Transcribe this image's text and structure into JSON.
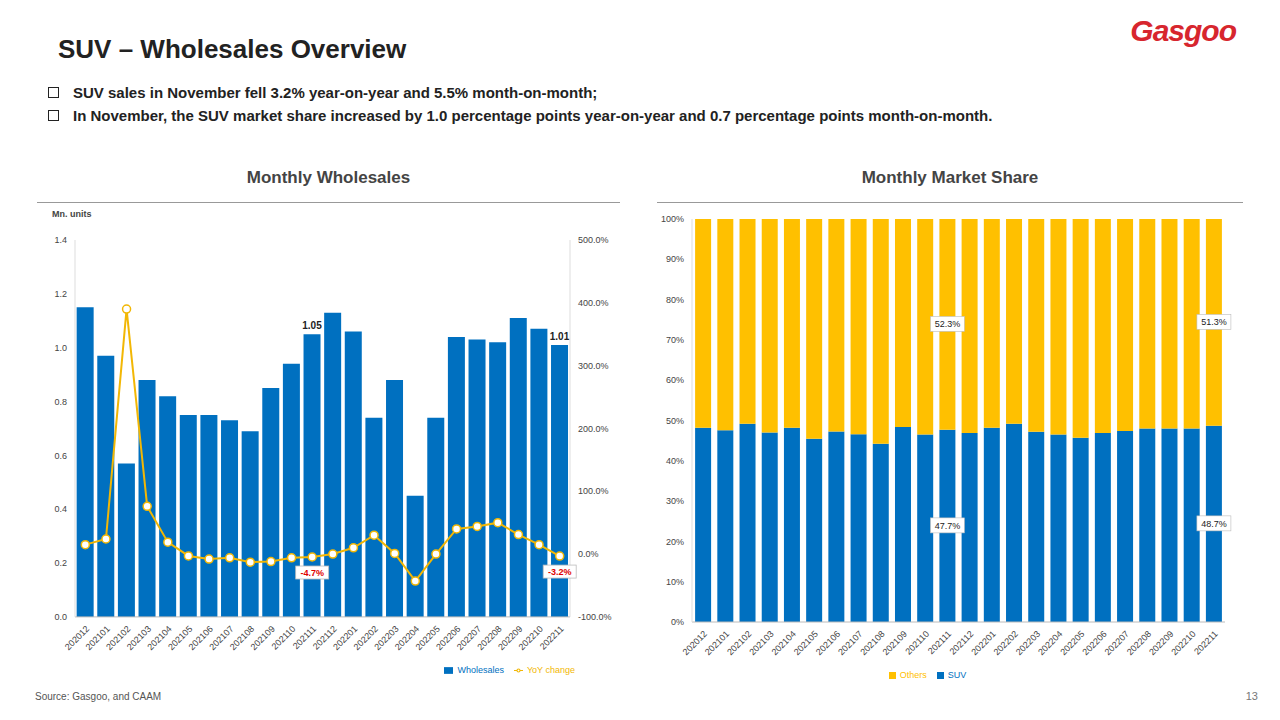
{
  "title": "SUV – Wholesales Overview",
  "bullets": [
    "SUV sales in November fell 3.2% year-on-year and 5.5% month-on-month;",
    "In November, the SUV market share increased by 1.0 percentage points year-on-year and 0.7 percentage points month-on-month."
  ],
  "source": "Source: Gasgoo, and CAAM",
  "page": 13,
  "logo": "Gasgoo",
  "chart_data": [
    {
      "type": "bar",
      "title": "Monthly Wholesales",
      "y_axis_label": "Mn. units",
      "categories": [
        "202012",
        "202101",
        "202102",
        "202103",
        "202104",
        "202105",
        "202106",
        "202107",
        "202108",
        "202109",
        "202110",
        "202111",
        "202112",
        "202201",
        "202202",
        "202203",
        "202204",
        "202205",
        "202206",
        "202207",
        "202208",
        "202209",
        "202210",
        "202211"
      ],
      "series": [
        {
          "name": "Wholesales",
          "type": "bar",
          "color": "#0070c0",
          "values": [
            1.15,
            0.97,
            0.57,
            0.88,
            0.82,
            0.75,
            0.75,
            0.73,
            0.69,
            0.85,
            0.94,
            1.05,
            1.13,
            1.06,
            0.74,
            0.88,
            0.45,
            0.74,
            1.04,
            1.03,
            1.02,
            1.11,
            1.07,
            1.01
          ],
          "value_labels": [
            null,
            null,
            null,
            null,
            null,
            null,
            null,
            null,
            null,
            null,
            null,
            "1.05",
            null,
            null,
            null,
            null,
            null,
            null,
            null,
            null,
            null,
            null,
            null,
            "1.01"
          ]
        },
        {
          "name": "YoY change",
          "type": "line",
          "axis": "y2",
          "color": "#f2b705",
          "marker": "circle",
          "values": [
            15,
            24,
            390,
            76,
            19,
            -3,
            -8,
            -6,
            -13,
            -12,
            -6,
            -4.7,
            0,
            10,
            30,
            1,
            -43,
            0,
            40,
            44,
            50,
            31,
            15,
            -3.2
          ],
          "value_labels": [
            null,
            null,
            null,
            null,
            null,
            null,
            null,
            null,
            null,
            null,
            null,
            "-4.7%",
            null,
            null,
            null,
            null,
            null,
            null,
            null,
            null,
            null,
            null,
            null,
            "-3.2%"
          ]
        }
      ],
      "ylim": [
        0,
        1.4
      ],
      "yticks": [
        {
          "value": 0,
          "label": "0.0"
        },
        0.2,
        0.4,
        0.6,
        0.8,
        {
          "value": 1,
          "label": "1.0"
        },
        1.2,
        1.4
      ],
      "y2lim": [
        -100,
        500
      ],
      "y2ticks": [
        {
          "value": -100,
          "label": "-100.0%"
        },
        {
          "value": 0,
          "label": "0.0%"
        },
        {
          "value": 100,
          "label": "100.0%"
        },
        {
          "value": 200,
          "label": "200.0%"
        },
        {
          "value": 300,
          "label": "300.0%"
        },
        {
          "value": 400,
          "label": "400.0%"
        },
        {
          "value": 500,
          "label": "500.0%"
        }
      ],
      "grid": false,
      "legend": "bottom"
    },
    {
      "type": "bar",
      "title": "Monthly Market Share",
      "stacked": true,
      "categories": [
        "202012",
        "202101",
        "202102",
        "202103",
        "202104",
        "202105",
        "202106",
        "202107",
        "202108",
        "202109",
        "202110",
        "202111",
        "202112",
        "202201",
        "202202",
        "202203",
        "202204",
        "202205",
        "202206",
        "202207",
        "202208",
        "202209",
        "202210",
        "202211"
      ],
      "series": [
        {
          "name": "SUV",
          "color": "#0070c0",
          "values": [
            48.2,
            47.6,
            49.2,
            47.0,
            48.2,
            45.5,
            47.3,
            46.6,
            44.2,
            48.4,
            46.5,
            47.7,
            46.9,
            48.2,
            49.2,
            47.2,
            46.5,
            45.7,
            46.9,
            47.4,
            48.0,
            48.0,
            48.0,
            48.7
          ],
          "value_labels": [
            null,
            null,
            null,
            null,
            null,
            null,
            null,
            null,
            null,
            null,
            null,
            "47.7%",
            null,
            null,
            null,
            null,
            null,
            null,
            null,
            null,
            null,
            null,
            null,
            "48.7%"
          ]
        },
        {
          "name": "Others",
          "color": "#ffc000",
          "values": [
            51.8,
            52.4,
            50.8,
            53.0,
            51.8,
            54.5,
            52.7,
            53.4,
            55.8,
            51.6,
            53.5,
            52.3,
            53.1,
            51.8,
            50.8,
            52.8,
            53.5,
            54.3,
            53.1,
            52.6,
            52.0,
            52.0,
            52.0,
            51.3
          ],
          "value_labels": [
            null,
            null,
            null,
            null,
            null,
            null,
            null,
            null,
            null,
            null,
            null,
            "52.3%",
            null,
            null,
            null,
            null,
            null,
            null,
            null,
            null,
            null,
            null,
            null,
            "51.3%"
          ]
        }
      ],
      "ylim": [
        0,
        100
      ],
      "yticks": [
        {
          "value": 0,
          "label": "0%"
        },
        {
          "value": 10,
          "label": "10%"
        },
        {
          "value": 20,
          "label": "20%"
        },
        {
          "value": 30,
          "label": "30%"
        },
        {
          "value": 40,
          "label": "40%"
        },
        {
          "value": 50,
          "label": "50%"
        },
        {
          "value": 60,
          "label": "60%"
        },
        {
          "value": 70,
          "label": "70%"
        },
        {
          "value": 80,
          "label": "80%"
        },
        {
          "value": 90,
          "label": "90%"
        },
        {
          "value": 100,
          "label": "100%"
        }
      ],
      "grid": false,
      "legend": "bottom"
    }
  ]
}
